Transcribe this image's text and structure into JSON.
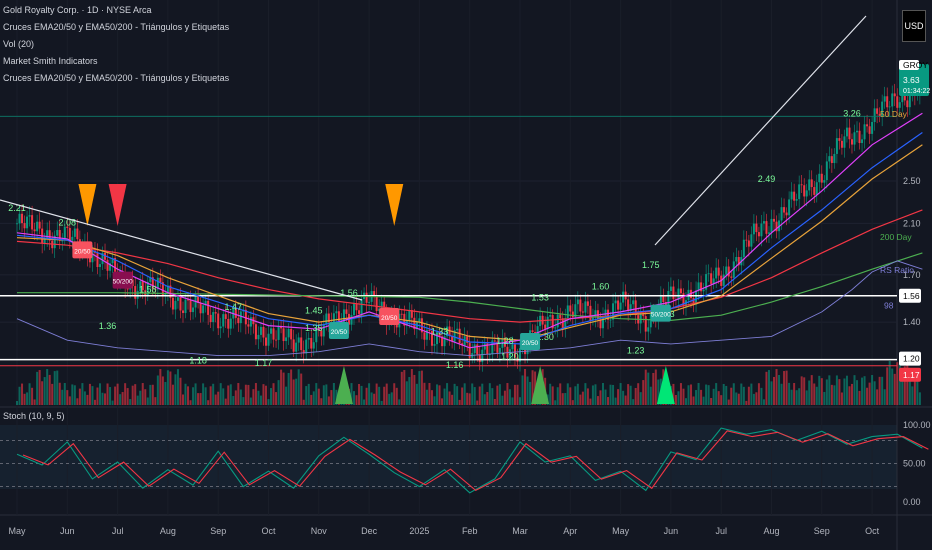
{
  "legend": {
    "title": "Gold Royalty Corp. · 1D · NYSE Arca",
    "ind1": "Cruces EMA20/50 y EMA50/200 - Triángulos y Etiquetas",
    "ind2": "Vol (20)",
    "ind3": "Market Smith Indicators",
    "ind4": "Cruces EMA20/50 y EMA50/200 - Triángulos y Etiquetas",
    "stoch": "Stoch (10, 9, 5)"
  },
  "currency_button": "USD",
  "price_axis": {
    "ticks": [
      "2.50",
      "2.10",
      "1.70",
      "1.40"
    ],
    "colors": {
      "text": "#b2b5be",
      "grid": "#1e2230"
    }
  },
  "badges": {
    "symbol": {
      "text": "GROY",
      "color": "#ffffff",
      "text_color": "#000000"
    },
    "last": {
      "text": "3.63",
      "sub": "01:34:22",
      "color": "#089981"
    },
    "ma50": {
      "text": "50 Day",
      "color": "#e8a33a"
    },
    "ma200": {
      "text": "200 Day",
      "color": "#4caf50"
    },
    "rs": {
      "text": "RS Ratio",
      "color": "#7e7ed6"
    },
    "rs_value": {
      "text": "98",
      "color": "#7e7ed6"
    },
    "hline1": {
      "text": "1.56",
      "color": "#ffffff",
      "text_color": "#000000"
    },
    "hline2": {
      "text": "1.20",
      "color": "#ffffff",
      "text_color": "#000000"
    },
    "red": {
      "text": "1.17",
      "color": "#f23645",
      "text_color": "#ffffff"
    }
  },
  "stoch_axis": {
    "ticks": [
      "100.00",
      "50.00",
      "0.00"
    ]
  },
  "time_axis": {
    "labels": [
      "May",
      "Jun",
      "Jul",
      "Aug",
      "Sep",
      "Oct",
      "Nov",
      "Dec",
      "2025",
      "Feb",
      "Mar",
      "Apr",
      "May",
      "Jun",
      "Jul",
      "Aug",
      "Sep",
      "Oct"
    ]
  },
  "chart_data": {
    "type": "candlestick",
    "symbol": "GROY",
    "interval": "1D",
    "price_range": [
      1.15,
      3.8
    ],
    "horizontal_lines": [
      1.56,
      1.2
    ],
    "annotations": [
      {
        "text": "2.21",
        "x_month": 0.0,
        "price": 2.21
      },
      {
        "text": "2.08",
        "x_month": 1.0,
        "price": 2.08
      },
      {
        "text": "1.58",
        "x_month": 2.6,
        "price": 1.58
      },
      {
        "text": "1.47",
        "x_month": 4.3,
        "price": 1.47
      },
      {
        "text": "1.45",
        "x_month": 5.9,
        "price": 1.45
      },
      {
        "text": "1.56",
        "x_month": 6.6,
        "price": 1.56
      },
      {
        "text": "1.33",
        "x_month": 8.4,
        "price": 1.33
      },
      {
        "text": "1.28",
        "x_month": 9.7,
        "price": 1.28
      },
      {
        "text": "1.53",
        "x_month": 10.4,
        "price": 1.53
      },
      {
        "text": "1.60",
        "x_month": 11.6,
        "price": 1.6
      },
      {
        "text": "1.75",
        "x_month": 12.6,
        "price": 1.75
      },
      {
        "text": "2.49",
        "x_month": 14.9,
        "price": 2.49
      },
      {
        "text": "3.26",
        "x_month": 16.6,
        "price": 3.26
      },
      {
        "text": "1.36",
        "x_month": 1.8,
        "price": 1.36
      },
      {
        "text": "1.43",
        "x_month": 12.9,
        "price": 1.43
      },
      {
        "text": "1.35",
        "x_month": 5.9,
        "price": 1.35
      },
      {
        "text": "1.30",
        "x_month": 10.5,
        "price": 1.3
      },
      {
        "text": "1.20",
        "x_month": 9.8,
        "price": 1.2
      },
      {
        "text": "1.23",
        "x_month": 12.3,
        "price": 1.23
      },
      {
        "text": "1.18",
        "x_month": 3.6,
        "price": 1.18
      },
      {
        "text": "1.17",
        "x_month": 4.9,
        "price": 1.17
      },
      {
        "text": "1.16",
        "x_month": 8.7,
        "price": 1.16
      }
    ],
    "cross_labels": [
      {
        "text": "20/50",
        "x_month": 1.3,
        "price": 1.88,
        "color": "#f7525f"
      },
      {
        "text": "50/200",
        "x_month": 2.1,
        "price": 1.66,
        "color": "#880e4f"
      },
      {
        "text": "20/50",
        "x_month": 6.4,
        "price": 1.35,
        "color": "#26a69a"
      },
      {
        "text": "20/50",
        "x_month": 7.4,
        "price": 1.43,
        "color": "#f7525f"
      },
      {
        "text": "20/50",
        "x_month": 10.2,
        "price": 1.29,
        "color": "#26a69a"
      },
      {
        "text": "50/200",
        "x_month": 12.8,
        "price": 1.45,
        "color": "#26a69a"
      }
    ],
    "triangles": [
      {
        "x_month": 1.4,
        "dir": "down",
        "color": "#ff9800"
      },
      {
        "x_month": 2.0,
        "dir": "down",
        "color": "#f23645"
      },
      {
        "x_month": 7.5,
        "dir": "down",
        "color": "#ff9800"
      },
      {
        "x_month": 6.5,
        "dir": "up",
        "color": "#4caf50"
      },
      {
        "x_month": 10.4,
        "dir": "up",
        "color": "#4caf50"
      },
      {
        "x_month": 12.9,
        "dir": "up",
        "color": "#00e676"
      }
    ],
    "series": [
      {
        "name": "",
        "type": "close",
        "points": [
          [
            0,
            2.1
          ],
          [
            0.5,
            2.03
          ],
          [
            1,
            1.98
          ],
          [
            1.5,
            1.88
          ],
          [
            2,
            1.68
          ],
          [
            2.5,
            1.62
          ],
          [
            3,
            1.58
          ],
          [
            3.5,
            1.48
          ],
          [
            4,
            1.44
          ],
          [
            4.5,
            1.4
          ],
          [
            5,
            1.34
          ],
          [
            5.5,
            1.28
          ],
          [
            6,
            1.33
          ],
          [
            6.5,
            1.46
          ],
          [
            7,
            1.52
          ],
          [
            7.5,
            1.44
          ],
          [
            8,
            1.36
          ],
          [
            8.5,
            1.32
          ],
          [
            9,
            1.27
          ],
          [
            9.5,
            1.24
          ],
          [
            10,
            1.26
          ],
          [
            10.5,
            1.38
          ],
          [
            11,
            1.48
          ],
          [
            11.5,
            1.43
          ],
          [
            12,
            1.51
          ],
          [
            12.5,
            1.42
          ],
          [
            13,
            1.54
          ],
          [
            13.5,
            1.6
          ],
          [
            14,
            1.68
          ],
          [
            14.5,
            1.92
          ],
          [
            15,
            2.12
          ],
          [
            15.5,
            2.32
          ],
          [
            16,
            2.58
          ],
          [
            16.5,
            2.98
          ],
          [
            17,
            3.18
          ],
          [
            17.5,
            3.55
          ],
          [
            18,
            3.63
          ]
        ]
      },
      {
        "name": "",
        "type": "ma",
        "color": "#f23645",
        "points": [
          [
            0,
            1.95
          ],
          [
            1,
            1.92
          ],
          [
            2,
            1.86
          ],
          [
            3,
            1.78
          ],
          [
            4,
            1.68
          ],
          [
            5,
            1.6
          ],
          [
            6,
            1.54
          ],
          [
            7,
            1.5
          ],
          [
            8,
            1.46
          ],
          [
            9,
            1.42
          ],
          [
            10,
            1.4
          ],
          [
            11,
            1.42
          ],
          [
            12,
            1.44
          ],
          [
            13,
            1.48
          ],
          [
            14,
            1.55
          ],
          [
            15,
            1.68
          ],
          [
            16,
            1.86
          ],
          [
            17,
            2.05
          ],
          [
            18,
            2.22
          ]
        ]
      },
      {
        "name": "200 Day",
        "type": "ma",
        "color": "#4caf50",
        "points": [
          [
            0,
            1.58
          ],
          [
            2,
            1.58
          ],
          [
            4,
            1.57
          ],
          [
            6,
            1.56
          ],
          [
            8,
            1.55
          ],
          [
            9,
            1.52
          ],
          [
            10,
            1.48
          ],
          [
            11,
            1.44
          ],
          [
            12,
            1.42
          ],
          [
            13,
            1.41
          ],
          [
            14,
            1.44
          ],
          [
            15,
            1.52
          ],
          [
            16,
            1.62
          ],
          [
            17,
            1.74
          ],
          [
            18,
            1.86
          ]
        ]
      },
      {
        "name": "50 Day",
        "type": "ma",
        "color": "#e8a33a",
        "points": [
          [
            0,
            1.98
          ],
          [
            1,
            1.96
          ],
          [
            2,
            1.84
          ],
          [
            3,
            1.68
          ],
          [
            4,
            1.56
          ],
          [
            5,
            1.45
          ],
          [
            6,
            1.4
          ],
          [
            7,
            1.44
          ],
          [
            8,
            1.4
          ],
          [
            9,
            1.32
          ],
          [
            10,
            1.3
          ],
          [
            11,
            1.37
          ],
          [
            12,
            1.44
          ],
          [
            13,
            1.46
          ],
          [
            14,
            1.56
          ],
          [
            15,
            1.82
          ],
          [
            16,
            2.12
          ],
          [
            17,
            2.52
          ],
          [
            18,
            2.9
          ]
        ]
      },
      {
        "name": "",
        "type": "ma",
        "color": "#2962ff",
        "points": [
          [
            0,
            2.0
          ],
          [
            1,
            1.96
          ],
          [
            2,
            1.8
          ],
          [
            3,
            1.62
          ],
          [
            4,
            1.52
          ],
          [
            5,
            1.42
          ],
          [
            6,
            1.38
          ],
          [
            7,
            1.44
          ],
          [
            8,
            1.38
          ],
          [
            9,
            1.29
          ],
          [
            10,
            1.28
          ],
          [
            11,
            1.38
          ],
          [
            12,
            1.45
          ],
          [
            13,
            1.48
          ],
          [
            14,
            1.6
          ],
          [
            15,
            1.9
          ],
          [
            16,
            2.22
          ],
          [
            17,
            2.64
          ],
          [
            18,
            3.05
          ]
        ]
      },
      {
        "name": "",
        "type": "ma",
        "color": "#e040fb",
        "points": [
          [
            0,
            2.02
          ],
          [
            1,
            1.97
          ],
          [
            2,
            1.74
          ],
          [
            3,
            1.58
          ],
          [
            4,
            1.48
          ],
          [
            5,
            1.38
          ],
          [
            6,
            1.36
          ],
          [
            7,
            1.46
          ],
          [
            8,
            1.36
          ],
          [
            9,
            1.26
          ],
          [
            10,
            1.3
          ],
          [
            11,
            1.42
          ],
          [
            12,
            1.46
          ],
          [
            13,
            1.52
          ],
          [
            14,
            1.66
          ],
          [
            15,
            2.02
          ],
          [
            16,
            2.4
          ],
          [
            17,
            2.9
          ],
          [
            18,
            3.3
          ]
        ]
      },
      {
        "name": "RS Ratio",
        "type": "rs",
        "color": "#7e7ed6",
        "points": [
          [
            0,
            1.42
          ],
          [
            1,
            1.3
          ],
          [
            2,
            1.26
          ],
          [
            3,
            1.24
          ],
          [
            4,
            1.22
          ],
          [
            5,
            1.22
          ],
          [
            6,
            1.24
          ],
          [
            7,
            1.28
          ],
          [
            8,
            1.24
          ],
          [
            9,
            1.22
          ],
          [
            10,
            1.24
          ],
          [
            11,
            1.26
          ],
          [
            12,
            1.3
          ],
          [
            13,
            1.28
          ],
          [
            14,
            1.3
          ],
          [
            15,
            1.32
          ],
          [
            16,
            1.46
          ],
          [
            16.6,
            1.6
          ],
          [
            17,
            1.72
          ],
          [
            17.5,
            1.8
          ],
          [
            18,
            1.74
          ]
        ]
      }
    ],
    "stochastic": {
      "name": "Stoch (10, 9, 5)",
      "range": [
        0,
        100
      ],
      "levels": [
        80,
        50,
        20
      ],
      "k": [
        [
          0,
          62
        ],
        [
          0.5,
          48
        ],
        [
          1,
          78
        ],
        [
          1.5,
          30
        ],
        [
          2,
          52
        ],
        [
          2.5,
          18
        ],
        [
          3,
          42
        ],
        [
          3.5,
          22
        ],
        [
          4,
          66
        ],
        [
          4.5,
          20
        ],
        [
          5,
          40
        ],
        [
          5.5,
          18
        ],
        [
          6,
          60
        ],
        [
          6.5,
          84
        ],
        [
          7,
          62
        ],
        [
          7.5,
          38
        ],
        [
          8,
          20
        ],
        [
          8.5,
          42
        ],
        [
          9,
          12
        ],
        [
          9.5,
          30
        ],
        [
          10,
          78
        ],
        [
          10.5,
          52
        ],
        [
          11,
          60
        ],
        [
          11.5,
          28
        ],
        [
          12,
          40
        ],
        [
          12.5,
          15
        ],
        [
          13,
          65
        ],
        [
          13.5,
          55
        ],
        [
          14,
          96
        ],
        [
          14.5,
          88
        ],
        [
          15,
          94
        ],
        [
          15.5,
          80
        ],
        [
          16,
          92
        ],
        [
          16.5,
          75
        ],
        [
          17,
          85
        ],
        [
          17.5,
          88
        ],
        [
          18,
          70
        ]
      ],
      "d_color": "#f23645",
      "k_color": "#089981"
    }
  }
}
